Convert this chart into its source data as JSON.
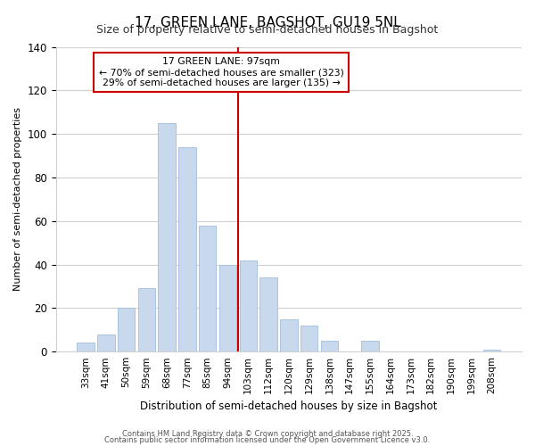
{
  "title": "17, GREEN LANE, BAGSHOT, GU19 5NL",
  "subtitle": "Size of property relative to semi-detached houses in Bagshot",
  "xlabel": "Distribution of semi-detached houses by size in Bagshot",
  "ylabel": "Number of semi-detached properties",
  "bar_labels": [
    "33sqm",
    "41sqm",
    "50sqm",
    "59sqm",
    "68sqm",
    "77sqm",
    "85sqm",
    "94sqm",
    "103sqm",
    "112sqm",
    "120sqm",
    "129sqm",
    "138sqm",
    "147sqm",
    "155sqm",
    "164sqm",
    "173sqm",
    "182sqm",
    "190sqm",
    "199sqm",
    "208sqm"
  ],
  "bar_heights": [
    4,
    8,
    20,
    29,
    105,
    94,
    58,
    40,
    42,
    34,
    15,
    12,
    5,
    0,
    5,
    0,
    0,
    0,
    0,
    0,
    1
  ],
  "bar_color": "#c8d9ee",
  "bar_edge_color": "#aac4e0",
  "vline_x_idx": 7,
  "vline_color": "#cc0000",
  "annotation_title": "17 GREEN LANE: 97sqm",
  "annotation_line1": "← 70% of semi-detached houses are smaller (323)",
  "annotation_line2": "29% of semi-detached houses are larger (135) →",
  "annotation_box_color": "#cc0000",
  "ylim": [
    0,
    140
  ],
  "yticks": [
    0,
    20,
    40,
    60,
    80,
    100,
    120,
    140
  ],
  "footer1": "Contains HM Land Registry data © Crown copyright and database right 2025.",
  "footer2": "Contains public sector information licensed under the Open Government Licence v3.0.",
  "bg_color": "#ffffff",
  "grid_color": "#d0d0d0",
  "title_fontsize": 11,
  "subtitle_fontsize": 9
}
